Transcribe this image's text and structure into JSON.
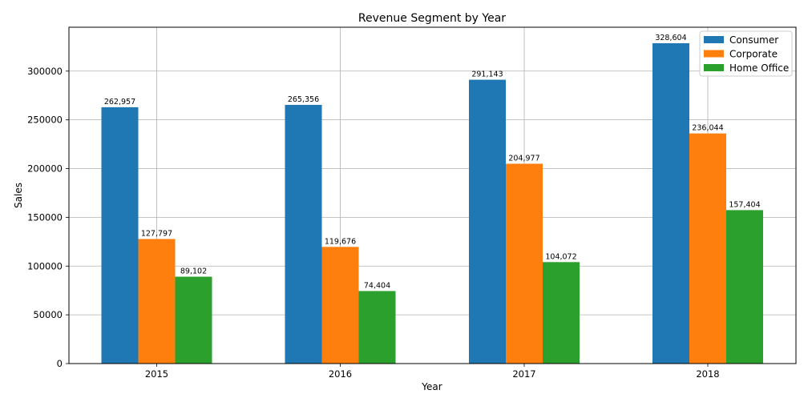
{
  "chart_data": {
    "type": "bar",
    "title": "Revenue Segment by Year",
    "xlabel": "Year",
    "ylabel": "Sales",
    "categories": [
      "2015",
      "2016",
      "2017",
      "2018"
    ],
    "series": [
      {
        "name": "Consumer",
        "color": "#1f77b4",
        "values": [
          262957,
          265356,
          291143,
          328604
        ],
        "labels": [
          "262,957",
          "265,356",
          "291,143",
          "328,604"
        ]
      },
      {
        "name": "Corporate",
        "color": "#ff7f0e",
        "values": [
          127797,
          119676,
          204977,
          236044
        ],
        "labels": [
          "127,797",
          "119,676",
          "204,977",
          "236,044"
        ]
      },
      {
        "name": "Home Office",
        "color": "#2ca02c",
        "values": [
          89102,
          74404,
          104072,
          157404
        ],
        "labels": [
          "89,102",
          "74,404",
          "104,072",
          "157,404"
        ]
      }
    ],
    "ylim": [
      0,
      345000
    ],
    "yticks": [
      0,
      50000,
      100000,
      150000,
      200000,
      250000,
      300000
    ],
    "ytick_labels": [
      "0",
      "50000",
      "100000",
      "150000",
      "200000",
      "250000",
      "300000"
    ],
    "grid": true,
    "legend_position": "top-right"
  }
}
